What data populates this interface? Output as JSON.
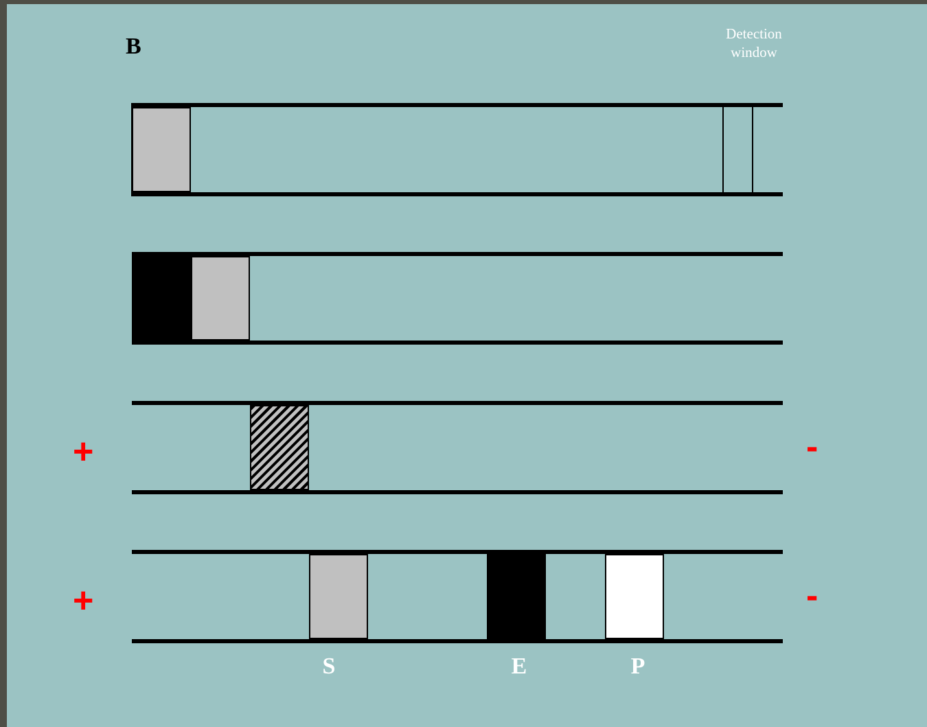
{
  "panel": {
    "label": "B"
  },
  "detection_window": {
    "line1": "Detection",
    "line2": "window"
  },
  "signs": {
    "plus": "+",
    "minus": "-"
  },
  "bands": {
    "s": "S",
    "e": "E",
    "p": "P"
  }
}
